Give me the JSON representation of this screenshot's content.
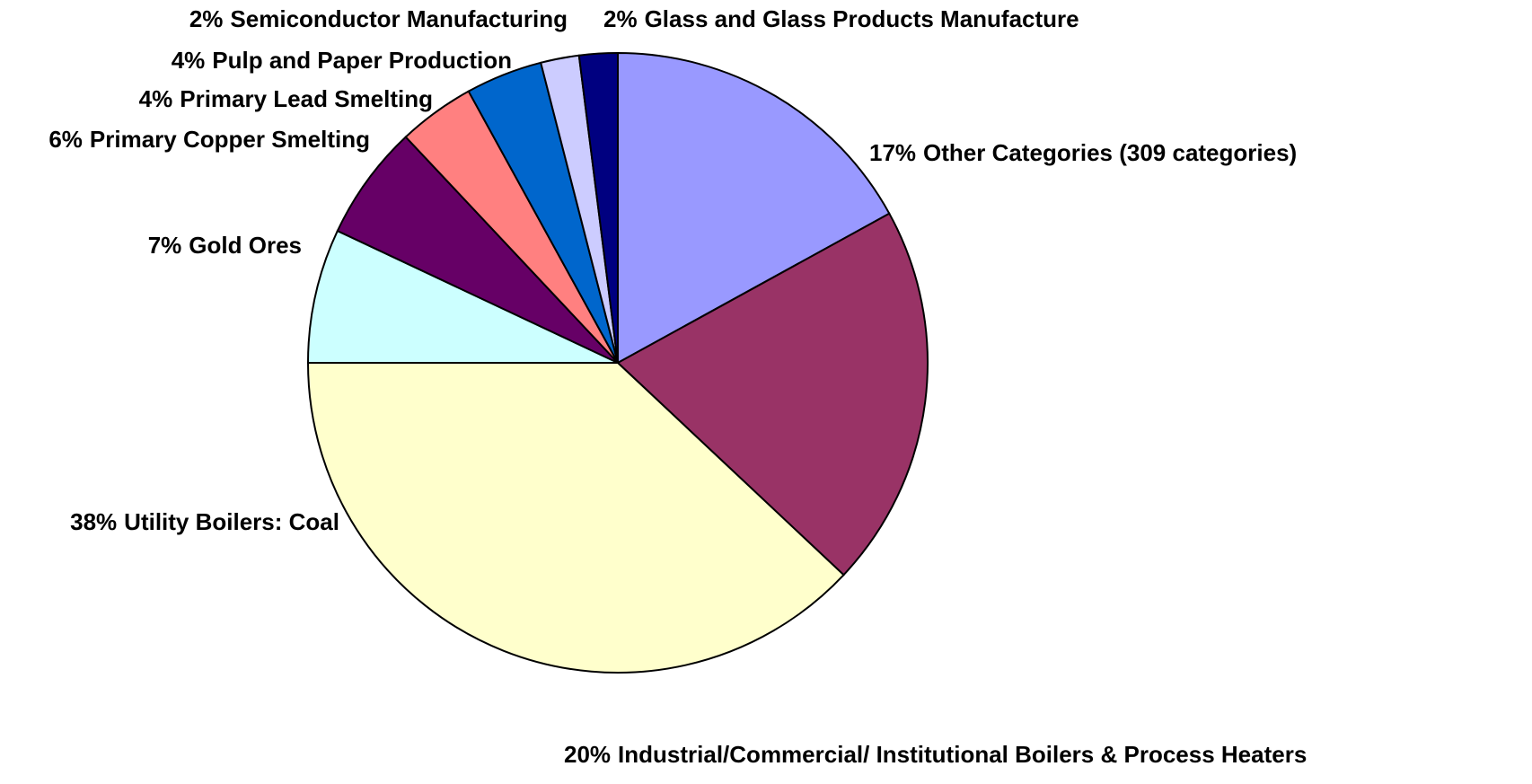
{
  "chart_data": {
    "type": "pie",
    "categories": [
      "Other Categories (309 categories)",
      "Industrial/Commercial/ Institutional Boilers & Process Heaters",
      "Utility Boilers: Coal",
      "Gold Ores",
      "Primary Copper Smelting",
      "Primary Lead Smelting",
      "Pulp and Paper Production",
      "Semiconductor Manufacturing",
      "Glass and Glass Products Manufacture"
    ],
    "values": [
      17,
      20,
      38,
      7,
      6,
      4,
      4,
      2,
      2
    ],
    "value_labels": [
      "17%",
      "20%",
      "38%",
      "7%",
      "6%",
      "4%",
      "4%",
      "2%",
      "2%"
    ],
    "colors": [
      "#9999ff",
      "#993366",
      "#ffffcc",
      "#ccffff",
      "#660066",
      "#ff8080",
      "#0066cc",
      "#ccccff",
      "#000080"
    ]
  }
}
